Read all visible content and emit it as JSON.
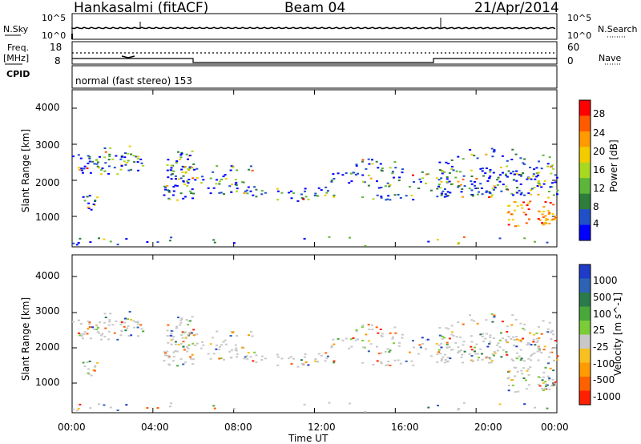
{
  "header": {
    "station": "Hankasalmi (fitACF)",
    "beam": "Beam 04",
    "date": "21/Apr/2014"
  },
  "noise_panel": {
    "left_label": "N.Sky",
    "right_label": "N.Search",
    "left_ticks": [
      "10^5",
      "10^0"
    ],
    "right_ticks": [
      "10^5",
      "10^0"
    ]
  },
  "freq_panel": {
    "left_label_1": "Freq.",
    "left_label_2": "[MHz]",
    "left_ticks": [
      "18",
      "8"
    ],
    "right_label": "Nave",
    "right_ticks": [
      "60",
      "0"
    ],
    "cpid_label": "CPID",
    "cpid_text": "normal (fast stereo) 153"
  },
  "chart_data": [
    {
      "type": "heatmap",
      "title": "",
      "ylabel": "Slant Range [km]",
      "xlabel": "",
      "x_range": [
        "00:00",
        "24:00"
      ],
      "y_ticks": [
        "1000",
        "2000",
        "3000",
        "4000"
      ],
      "ylim": [
        200,
        4600
      ],
      "colorbar": {
        "label": "Power [dB]",
        "ticks": [
          "4",
          "8",
          "12",
          "16",
          "20",
          "24",
          "28"
        ],
        "colors": [
          "#0000ff",
          "#2050c8",
          "#2e7d3a",
          "#5bb63a",
          "#a8d820",
          "#f3cc00",
          "#ff9a00",
          "#ff5a00",
          "#ff0000"
        ]
      }
    },
    {
      "type": "heatmap",
      "title": "",
      "ylabel": "Slant Range [km]",
      "xlabel": "Time UT",
      "x_ticks": [
        "00:00",
        "04:00",
        "08:00",
        "12:00",
        "16:00",
        "20:00",
        "00:00"
      ],
      "y_ticks": [
        "1000",
        "2000",
        "3000",
        "4000"
      ],
      "ylim": [
        200,
        4600
      ],
      "colorbar": {
        "label": "Velocity [m s^-1]",
        "ticks": [
          "1000",
          "500",
          "100",
          "25",
          "-25",
          "-100",
          "-500",
          "-1000"
        ],
        "colors": [
          "#1e3cc8",
          "#2d63b4",
          "#2a7a4b",
          "#48a83a",
          "#7ccc3a",
          "#c8c8c8",
          "#f8c020",
          "#ff9a00",
          "#ff6000",
          "#ff2000"
        ]
      }
    }
  ]
}
